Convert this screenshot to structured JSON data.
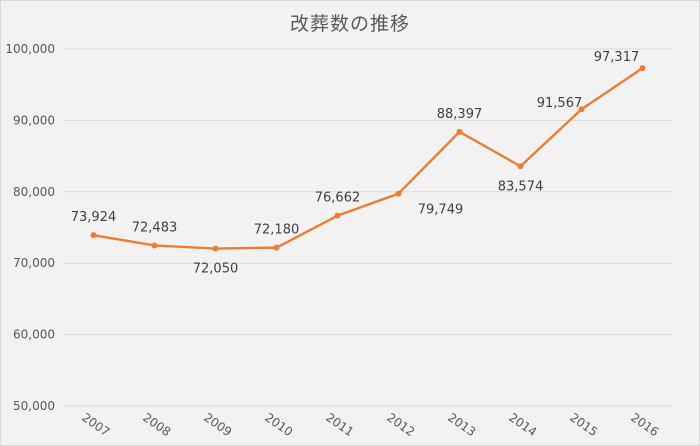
{
  "chart_data": {
    "type": "line",
    "title": "改葬数の推移",
    "categories": [
      "2007",
      "2008",
      "2009",
      "2010",
      "2011",
      "2012",
      "2013",
      "2014",
      "2015",
      "2016"
    ],
    "series": [
      {
        "values": [
          73924,
          72483,
          72050,
          72180,
          76662,
          79749,
          88397,
          83574,
          91567,
          97317
        ],
        "data_labels": [
          "73,924",
          "72,483",
          "72,050",
          "72,180",
          "76,662",
          "79,749",
          "88,397",
          "83,574",
          "91,567",
          "97,317"
        ],
        "color": "#ed7d31"
      }
    ],
    "ylim": [
      50000,
      100000
    ],
    "yticks": [
      50000,
      60000,
      70000,
      80000,
      90000,
      100000
    ],
    "ytick_labels": [
      "50,000",
      "60,000",
      "70,000",
      "80,000",
      "90,000",
      "100,000"
    ],
    "xlabel": "",
    "ylabel": "",
    "grid": true,
    "legend": "none",
    "colors": {
      "background": "#f2f2f2",
      "gridline": "#d9d9d9",
      "text": "#595959"
    }
  }
}
